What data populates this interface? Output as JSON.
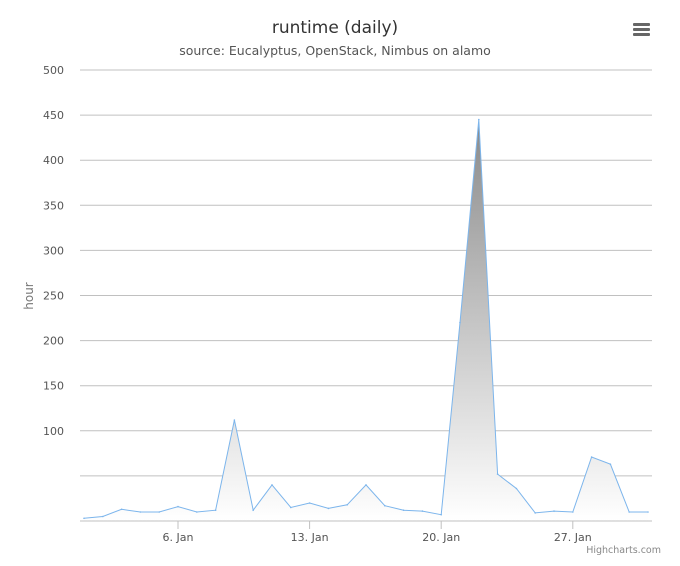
{
  "chart_data": {
    "type": "area",
    "title": "runtime (daily)",
    "subtitle": "source: Eucalyptus, OpenStack, Nimbus on alamo",
    "xlabel": "",
    "ylabel": "hour",
    "x": [
      "Jan 1",
      "Jan 2",
      "Jan 3",
      "Jan 4",
      "Jan 5",
      "Jan 6",
      "Jan 7",
      "Jan 8",
      "Jan 9",
      "Jan 10",
      "Jan 11",
      "Jan 12",
      "Jan 13",
      "Jan 14",
      "Jan 15",
      "Jan 16",
      "Jan 17",
      "Jan 18",
      "Jan 19",
      "Jan 20",
      "Jan 21",
      "Jan 22",
      "Jan 23",
      "Jan 24",
      "Jan 25",
      "Jan 26",
      "Jan 27",
      "Jan 28",
      "Jan 29",
      "Jan 30",
      "Jan 31"
    ],
    "values": [
      3,
      5,
      13,
      10,
      10,
      16,
      10,
      12,
      112,
      12,
      40,
      15,
      20,
      14,
      18,
      40,
      17,
      12,
      11,
      7,
      220,
      445,
      52,
      36,
      9,
      11,
      10,
      71,
      63,
      10,
      10
    ],
    "ylim": [
      0,
      500
    ],
    "yticks": [
      100,
      150,
      200,
      250,
      300,
      350,
      400,
      450,
      500
    ],
    "xticks": [
      {
        "label": "6. Jan",
        "index": 5
      },
      {
        "label": "13. Jan",
        "index": 12
      },
      {
        "label": "20. Jan",
        "index": 19
      },
      {
        "label": "27. Jan",
        "index": 26
      }
    ],
    "grid": true,
    "legend": "none",
    "colors": {
      "line": "#7cb5ec",
      "fill_top": "#8a8a8a",
      "fill_bottom": "#ffffff",
      "grid": "#c0c0c0"
    }
  },
  "credits": "Highcharts.com",
  "menu": {
    "icon": "menu-icon"
  }
}
